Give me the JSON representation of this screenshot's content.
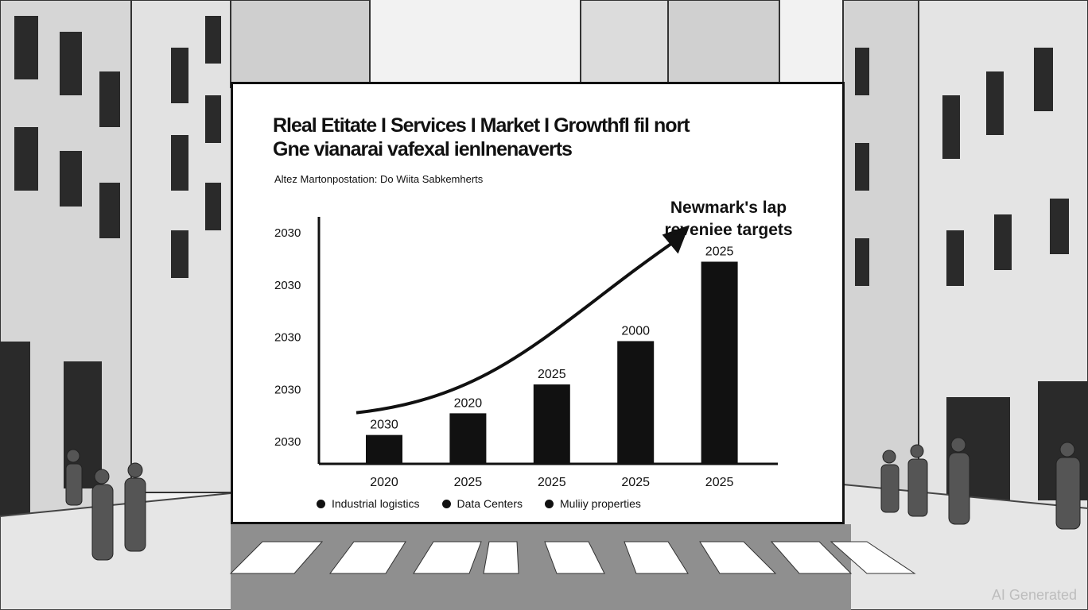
{
  "chart_data": {
    "type": "bar",
    "title_lines": [
      "Rleal Etitate I Services I Market I Growthfl fil nort",
      "Gne vianarai vafexal ienlnenaverts"
    ],
    "subtitle": "Altez Martonpostation: Do Wiita Sabkemherts",
    "annotation": [
      "Newmark's lap",
      "reveniee targets"
    ],
    "ytick_labels": [
      "2030",
      "2030",
      "2030",
      "2030",
      "2030"
    ],
    "categories": [
      "2020",
      "2025",
      "2025",
      "2025",
      "2025"
    ],
    "values": [
      0.12,
      0.21,
      0.33,
      0.51,
      0.84
    ],
    "bar_labels": [
      "2030",
      "2020",
      "2025",
      "2000",
      "2025"
    ],
    "legend": [
      "Industrial logistics",
      "Data Centers",
      "Muliiy properties"
    ],
    "ylim": [
      0,
      1
    ],
    "grid": false
  },
  "watermark": "AI Generated",
  "colors": {
    "ink": "#111111",
    "panel": "#ffffff",
    "street": "#d9d9d9"
  }
}
